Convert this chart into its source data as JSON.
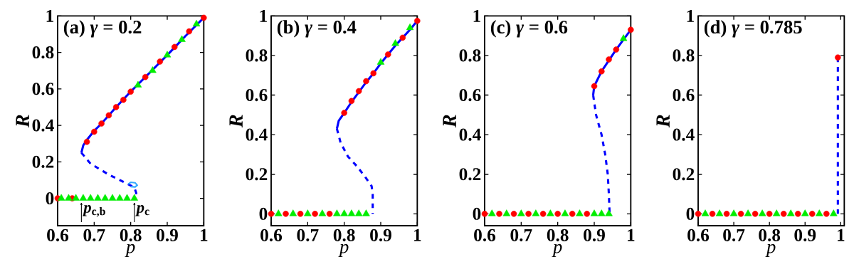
{
  "chart_data": [
    {
      "type": "line",
      "title": "(a) *γ* = 0.2",
      "xlabel": "p",
      "ylabel": "R",
      "xlim": [
        0.6,
        1
      ],
      "ylim": [
        -0.15,
        1
      ],
      "xticks": [
        0.6,
        0.7,
        0.8,
        0.9,
        1
      ],
      "yticks": [
        0,
        0.2,
        0.4,
        0.6,
        0.8,
        1
      ],
      "annotations": [
        {
          "text": "*p*$_{c,b}$",
          "x": 0.665,
          "y": -0.02
        },
        {
          "text": "*p*$_{c}$",
          "x": 0.81,
          "y": -0.02
        }
      ],
      "series": [
        {
          "line_style": "solid",
          "marker": "none",
          "color": "#0000ff",
          "x": [
            0.665,
            0.67,
            0.68,
            0.7,
            0.72,
            0.74,
            0.76,
            0.8,
            0.85,
            0.9,
            0.95,
            1.0
          ],
          "values": [
            0.25,
            0.29,
            0.32,
            0.37,
            0.41,
            0.455,
            0.5,
            0.585,
            0.685,
            0.785,
            0.89,
            0.99
          ]
        },
        {
          "line_style": "dashed",
          "marker": "none",
          "color": "#0000ff",
          "x": [
            0.665,
            0.69,
            0.74,
            0.79,
            0.81,
            0.815,
            0.815
          ],
          "values": [
            0.25,
            0.19,
            0.13,
            0.08,
            0.06,
            0.03,
            0
          ]
        },
        {
          "line_style": "solid",
          "marker": "none",
          "color": "#33aaff",
          "x": [
            0.793,
            0.8,
            0.812,
            0.818,
            0.812,
            0.8
          ],
          "values": [
            0.078,
            0.088,
            0.085,
            0.072,
            0.062,
            0.064
          ]
        },
        {
          "type": "scatter",
          "marker": "circle",
          "color": "#ff0000",
          "x": [
            0.6,
            0.64,
            0.68,
            0.7,
            0.72,
            0.74,
            0.76,
            0.78,
            0.8,
            0.84,
            0.88,
            0.92,
            0.96,
            1.0
          ],
          "values": [
            0,
            0,
            0.31,
            0.365,
            0.41,
            0.455,
            0.5,
            0.54,
            0.585,
            0.665,
            0.75,
            0.83,
            0.915,
            0.99
          ]
        },
        {
          "type": "scatter",
          "marker": "triangle",
          "color": "#00ee00",
          "x": [
            0.61,
            0.63,
            0.65,
            0.67,
            0.69,
            0.71,
            0.73,
            0.75,
            0.77,
            0.79,
            0.81,
            0.82,
            0.86,
            0.9,
            0.94,
            0.98
          ],
          "values": [
            0,
            0,
            0,
            0,
            0,
            0,
            0,
            0,
            0,
            0,
            0,
            0.62,
            0.7,
            0.785,
            0.87,
            0.955
          ]
        }
      ]
    },
    {
      "type": "line",
      "title": "(b) *γ* = 0.4",
      "xlabel": "p",
      "ylabel": "R",
      "xlim": [
        0.6,
        1
      ],
      "ylim": [
        -0.06,
        1
      ],
      "xticks": [
        0.6,
        0.7,
        0.8,
        0.9,
        1
      ],
      "yticks": [
        0,
        0.2,
        0.4,
        0.6,
        0.8,
        1
      ],
      "series": [
        {
          "line_style": "solid",
          "marker": "none",
          "color": "#0000ff",
          "x": [
            0.78,
            0.785,
            0.8,
            0.82,
            0.84,
            0.86,
            0.88,
            0.9,
            0.92,
            0.94,
            0.96,
            0.98,
            1.0
          ],
          "values": [
            0.43,
            0.47,
            0.51,
            0.565,
            0.615,
            0.665,
            0.71,
            0.76,
            0.805,
            0.85,
            0.89,
            0.93,
            0.975
          ]
        },
        {
          "line_style": "dashed",
          "marker": "none",
          "color": "#0000ff",
          "x": [
            0.78,
            0.79,
            0.81,
            0.835,
            0.86,
            0.875,
            0.878,
            0.878
          ],
          "values": [
            0.43,
            0.36,
            0.29,
            0.24,
            0.18,
            0.14,
            0.1,
            0
          ]
        },
        {
          "type": "scatter",
          "marker": "circle",
          "color": "#ff0000",
          "x": [
            0.6,
            0.64,
            0.68,
            0.72,
            0.76,
            0.8,
            0.82,
            0.84,
            0.86,
            0.88,
            0.92,
            0.96,
            1.0
          ],
          "values": [
            0,
            0,
            0,
            0,
            0,
            0.51,
            0.57,
            0.62,
            0.67,
            0.71,
            0.805,
            0.89,
            0.975
          ]
        },
        {
          "type": "scatter",
          "marker": "triangle",
          "color": "#00ee00",
          "x": [
            0.62,
            0.66,
            0.7,
            0.74,
            0.78,
            0.8,
            0.82,
            0.84,
            0.86,
            0.9,
            0.94,
            0.98
          ],
          "values": [
            0,
            0,
            0,
            0,
            0,
            0,
            0,
            0,
            0,
            0.765,
            0.86,
            0.94
          ]
        }
      ]
    },
    {
      "type": "line",
      "title": "(c) *γ* = 0.6",
      "xlabel": "p",
      "ylabel": "R",
      "xlim": [
        0.6,
        1
      ],
      "ylim": [
        -0.06,
        1
      ],
      "xticks": [
        0.6,
        0.7,
        0.8,
        0.9,
        1
      ],
      "yticks": [
        0,
        0.2,
        0.4,
        0.6,
        0.8,
        1
      ],
      "series": [
        {
          "line_style": "solid",
          "marker": "none",
          "color": "#0000ff",
          "x": [
            0.897,
            0.9,
            0.92,
            0.94,
            0.96,
            0.98,
            1.0
          ],
          "values": [
            0.6,
            0.645,
            0.72,
            0.775,
            0.83,
            0.88,
            0.93
          ]
        },
        {
          "line_style": "dashed",
          "marker": "none",
          "color": "#0000ff",
          "x": [
            0.897,
            0.905,
            0.92,
            0.93,
            0.937,
            0.94,
            0.942
          ],
          "values": [
            0.6,
            0.5,
            0.4,
            0.3,
            0.2,
            0.1,
            0
          ]
        },
        {
          "type": "scatter",
          "marker": "circle",
          "color": "#ff0000",
          "x": [
            0.6,
            0.64,
            0.68,
            0.72,
            0.76,
            0.8,
            0.84,
            0.88,
            0.9,
            0.92,
            0.94,
            0.96,
            1.0
          ],
          "values": [
            0,
            0,
            0,
            0,
            0,
            0,
            0,
            0,
            0.645,
            0.72,
            0.78,
            0.83,
            0.93
          ]
        },
        {
          "type": "scatter",
          "marker": "triangle",
          "color": "#00ee00",
          "x": [
            0.62,
            0.66,
            0.7,
            0.74,
            0.78,
            0.82,
            0.86,
            0.9,
            0.92,
            0.94,
            0.98
          ],
          "values": [
            0,
            0,
            0,
            0,
            0,
            0,
            0,
            0,
            0,
            0,
            0.885
          ]
        }
      ]
    },
    {
      "type": "line",
      "title": "(d) *γ* = 0.785",
      "xlabel": "p",
      "ylabel": "R",
      "xlim": [
        0.6,
        1.01
      ],
      "ylim": [
        -0.06,
        1
      ],
      "xticks": [
        0.6,
        0.7,
        0.8,
        0.9,
        1
      ],
      "yticks": [
        0,
        0.2,
        0.4,
        0.6,
        0.8,
        1
      ],
      "series": [
        {
          "line_style": "dashed",
          "marker": "none",
          "color": "#0000ff",
          "x": [
            0.992,
            0.992
          ],
          "values": [
            0.79,
            0
          ]
        },
        {
          "type": "scatter",
          "marker": "circle",
          "color": "#ff0000",
          "x": [
            0.6,
            0.64,
            0.68,
            0.72,
            0.76,
            0.8,
            0.84,
            0.88,
            0.92,
            0.96,
            0.992
          ],
          "values": [
            0,
            0,
            0,
            0,
            0,
            0,
            0,
            0,
            0,
            0,
            0.79
          ]
        },
        {
          "type": "scatter",
          "marker": "triangle",
          "color": "#00ee00",
          "x": [
            0.62,
            0.66,
            0.7,
            0.74,
            0.78,
            0.82,
            0.86,
            0.9,
            0.94,
            0.98
          ],
          "values": [
            0,
            0,
            0,
            0,
            0,
            0,
            0,
            0,
            0,
            0
          ]
        }
      ]
    }
  ]
}
